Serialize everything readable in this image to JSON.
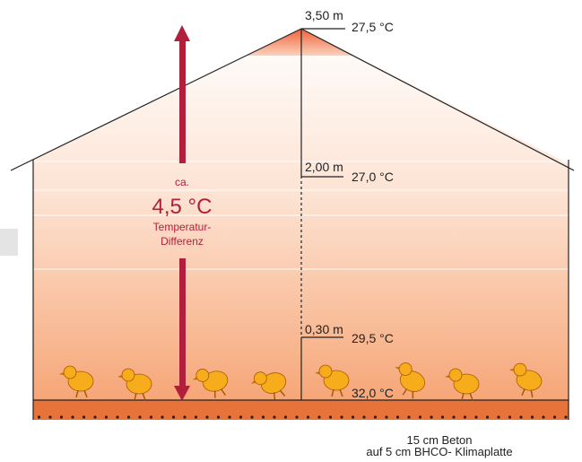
{
  "diagram": {
    "levels": [
      {
        "height": "3,50 m",
        "temperature": "27,5 °C"
      },
      {
        "height": "2,00 m",
        "temperature": "27,0 °C"
      },
      {
        "height": "0,30 m",
        "temperature": "29,5 °C"
      }
    ],
    "floor_temperature": "32,0 °C",
    "difference": {
      "prefix": "ca.",
      "value": "4,5 °C",
      "line1": "Temperatur-",
      "line2": "Differenz"
    },
    "floor": {
      "line1": "15 cm Beton",
      "line2": "auf 5 cm BHCO- Klimaplatte"
    }
  }
}
